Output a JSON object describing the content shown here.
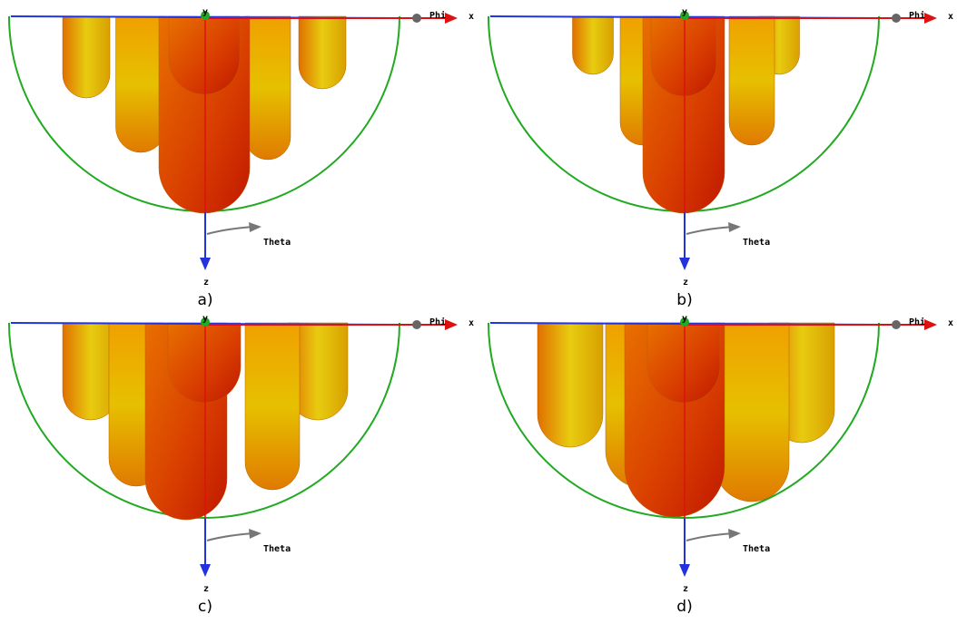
{
  "panels": [
    {
      "caption": "a)",
      "x_label": "x",
      "y_label": "y",
      "z_label": "z",
      "phi_label": "Phi",
      "theta_label": "Theta"
    },
    {
      "caption": "b)",
      "x_label": "x",
      "y_label": "y",
      "z_label": "z",
      "phi_label": "Phi",
      "theta_label": "Theta"
    },
    {
      "caption": "c)",
      "x_label": "x",
      "y_label": "y",
      "z_label": "z",
      "phi_label": "Phi",
      "theta_label": "Theta"
    },
    {
      "caption": "d)",
      "x_label": "x",
      "y_label": "y",
      "z_label": "z",
      "phi_label": "Phi",
      "theta_label": "Theta"
    }
  ]
}
